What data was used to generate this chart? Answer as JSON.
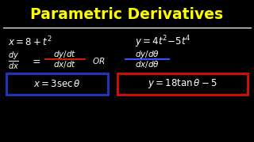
{
  "background_color": "#000000",
  "title": "Parametric Derivatives",
  "title_color": "#FFFF00",
  "title_fontsize": 13.5,
  "line_color": "#FFFFFF",
  "frac1_line_color": "#CC2200",
  "frac2_line_color": "#3355FF",
  "box1_border": "#2233BB",
  "box2_border": "#CC1100",
  "white": "#FFFFFF"
}
